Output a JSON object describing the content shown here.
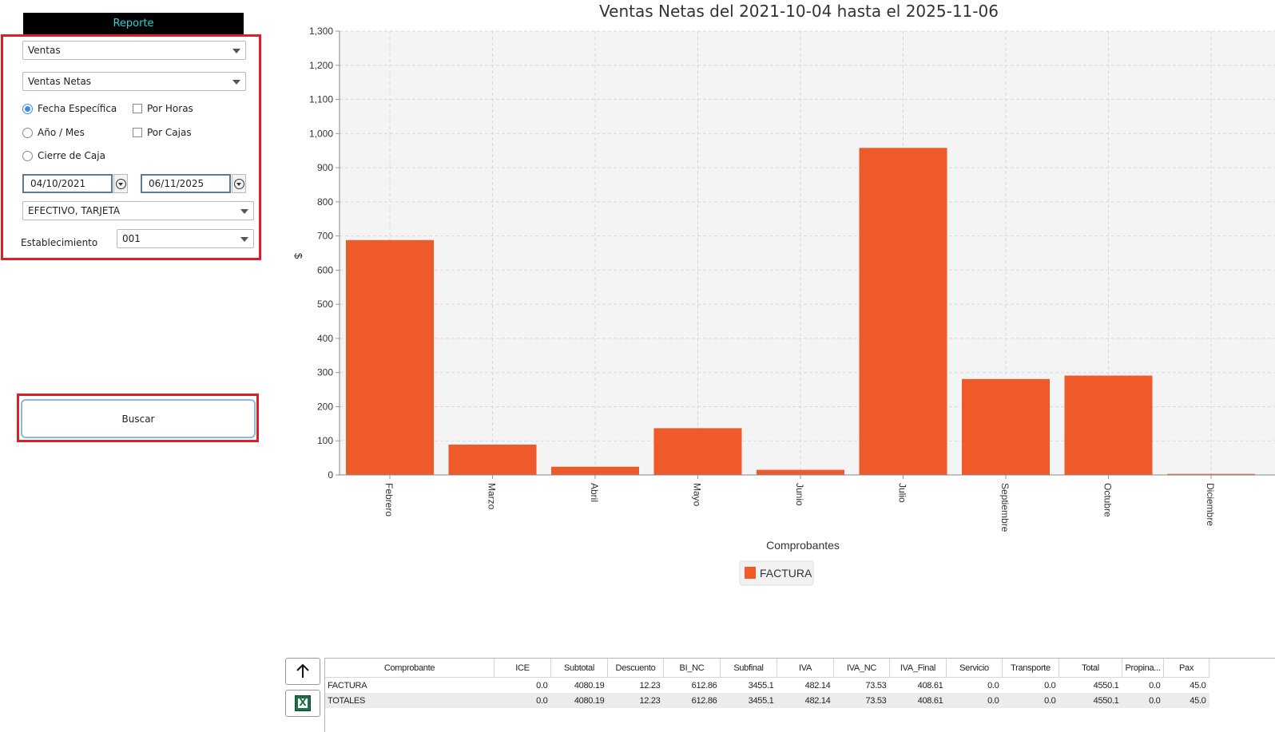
{
  "sidebar": {
    "header": "Reporte",
    "report_type": "Ventas",
    "report_subtype": "Ventas Netas",
    "options": {
      "fecha_especifica": "Fecha Específica",
      "anio_mes": "Año / Mes",
      "cierre_caja": "Cierre de Caja",
      "por_horas": "Por Horas",
      "por_cajas": "Por Cajas"
    },
    "date_from": "04/10/2021",
    "date_to": "06/11/2025",
    "payment_methods": "EFECTIVO, TARJETA",
    "establecimiento_label": "Establecimiento",
    "establecimiento_value": "001",
    "buscar_label": "Buscar"
  },
  "chart_data": {
    "type": "bar",
    "title": "Ventas Netas del 2021-10-04 hasta el 2025-11-06",
    "xlabel": "Comprobantes",
    "ylabel": "$",
    "categories": [
      "Febrero",
      "Marzo",
      "Abril",
      "Mayo",
      "Junio",
      "Julio",
      "Septiembre",
      "Octubre",
      "Diciembre"
    ],
    "series": [
      {
        "name": "FACTURA",
        "values": [
          688,
          89,
          24,
          137,
          15,
          958,
          281,
          291,
          3
        ]
      }
    ],
    "ylim": [
      0,
      1300
    ],
    "yticks": [
      "0",
      "100",
      "200",
      "300",
      "400",
      "500",
      "600",
      "700",
      "800",
      "900",
      "1,000",
      "1,100",
      "1,200",
      "1,300"
    ],
    "grid": true,
    "legend": "bottom-center",
    "bar_color": "#ee5a2a"
  },
  "table": {
    "headers": [
      "Comprobante",
      "ICE",
      "Subtotal",
      "Descuento",
      "BI_NC",
      "Subfinal",
      "IVA",
      "IVA_NC",
      "IVA_Final",
      "Servicio",
      "Transporte",
      "Total",
      "Propina...",
      "Pax"
    ],
    "rows": [
      [
        "FACTURA",
        "0.0",
        "4080.19",
        "12.23",
        "612.86",
        "3455.1",
        "482.14",
        "73.53",
        "408.61",
        "0.0",
        "0.0",
        "4550.1",
        "0.0",
        "45.0"
      ],
      [
        "TOTALES",
        "0.0",
        "4080.19",
        "12.23",
        "612.86",
        "3455.1",
        "482.14",
        "73.53",
        "408.61",
        "0.0",
        "0.0",
        "4550.1",
        "0.0",
        "45.0"
      ]
    ]
  },
  "icons": {
    "up": "arrow-up-icon",
    "excel": "excel-icon"
  }
}
